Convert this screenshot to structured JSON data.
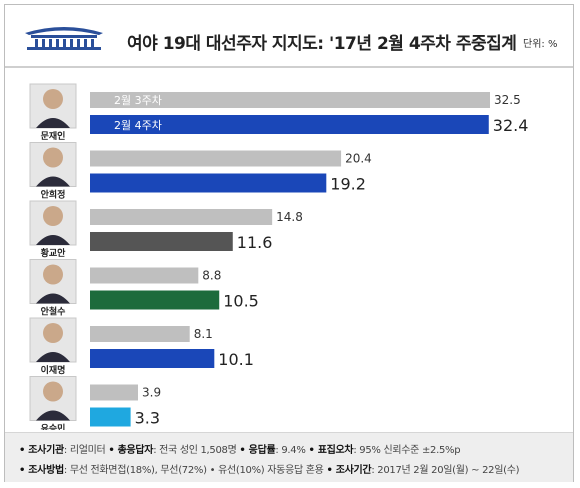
{
  "title": "여야 19대 대선주자 지지도: '17년 2월 4주차 주중집계",
  "unit_label": "단위: %",
  "legend_labels": {
    "prev": "2월 3주차",
    "curr": "2월 4주차"
  },
  "colors": {
    "prev": "#bfbfbf",
    "header_rule": "#cfcfcf"
  },
  "chart_data": {
    "type": "bar",
    "orientation": "horizontal",
    "categories": [
      "문재인",
      "안희정",
      "황교안",
      "안철수",
      "이재명",
      "유승민"
    ],
    "series": [
      {
        "name": "2월 3주차",
        "values": [
          32.5,
          20.4,
          14.8,
          8.8,
          8.1,
          3.9
        ]
      },
      {
        "name": "2월 4주차",
        "values": [
          32.4,
          19.2,
          11.6,
          10.5,
          10.1,
          3.3
        ]
      }
    ],
    "current_colors": [
      "#1a47b8",
      "#1a47b8",
      "#555555",
      "#1d6b3c",
      "#1a47b8",
      "#1fa8e0"
    ],
    "xlim": [
      0,
      35
    ]
  },
  "footer": {
    "line1": [
      {
        "key": "조사기관",
        "value": "리얼미터"
      },
      {
        "key": "총응답자",
        "value": "전국 성인 1,508명"
      },
      {
        "key": "응답률",
        "value": "9.4%"
      },
      {
        "key": "표집오차",
        "value": "95% 신뢰수준 ±2.5%p"
      }
    ],
    "line2": [
      {
        "key": "조사방법",
        "value": "무선 전화면접(18%), 무선(72%) • 유선(10%) 자동응답 혼용"
      },
      {
        "key": "조사기간",
        "value": "2017년 2월 20일(월) ~ 22일(수)"
      }
    ]
  }
}
